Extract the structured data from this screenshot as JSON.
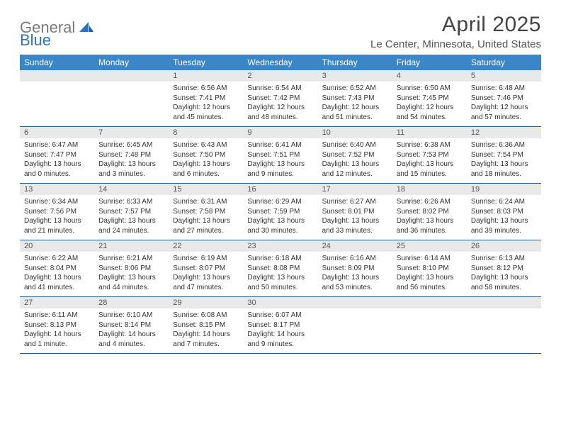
{
  "logo": {
    "text1": "General",
    "text2": "Blue"
  },
  "title": "April 2025",
  "location": "Le Center, Minnesota, United States",
  "colors": {
    "header_bg": "#3b86c7",
    "header_fg": "#ffffff",
    "daynum_bg": "#e9e9e9",
    "rule": "#2b5f8a",
    "logo_gray": "#7a7a7a",
    "logo_blue": "#2b74b8"
  },
  "typography": {
    "title_fontsize": 30,
    "location_fontsize": 15,
    "weekday_fontsize": 12,
    "daynum_fontsize": 11,
    "detail_fontsize": 10
  },
  "weekdays": [
    "Sunday",
    "Monday",
    "Tuesday",
    "Wednesday",
    "Thursday",
    "Friday",
    "Saturday"
  ],
  "weeks": [
    [
      null,
      null,
      {
        "n": "1",
        "sunrise": "6:56 AM",
        "sunset": "7:41 PM",
        "daylight": "12 hours and 45 minutes."
      },
      {
        "n": "2",
        "sunrise": "6:54 AM",
        "sunset": "7:42 PM",
        "daylight": "12 hours and 48 minutes."
      },
      {
        "n": "3",
        "sunrise": "6:52 AM",
        "sunset": "7:43 PM",
        "daylight": "12 hours and 51 minutes."
      },
      {
        "n": "4",
        "sunrise": "6:50 AM",
        "sunset": "7:45 PM",
        "daylight": "12 hours and 54 minutes."
      },
      {
        "n": "5",
        "sunrise": "6:48 AM",
        "sunset": "7:46 PM",
        "daylight": "12 hours and 57 minutes."
      }
    ],
    [
      {
        "n": "6",
        "sunrise": "6:47 AM",
        "sunset": "7:47 PM",
        "daylight": "13 hours and 0 minutes."
      },
      {
        "n": "7",
        "sunrise": "6:45 AM",
        "sunset": "7:48 PM",
        "daylight": "13 hours and 3 minutes."
      },
      {
        "n": "8",
        "sunrise": "6:43 AM",
        "sunset": "7:50 PM",
        "daylight": "13 hours and 6 minutes."
      },
      {
        "n": "9",
        "sunrise": "6:41 AM",
        "sunset": "7:51 PM",
        "daylight": "13 hours and 9 minutes."
      },
      {
        "n": "10",
        "sunrise": "6:40 AM",
        "sunset": "7:52 PM",
        "daylight": "13 hours and 12 minutes."
      },
      {
        "n": "11",
        "sunrise": "6:38 AM",
        "sunset": "7:53 PM",
        "daylight": "13 hours and 15 minutes."
      },
      {
        "n": "12",
        "sunrise": "6:36 AM",
        "sunset": "7:54 PM",
        "daylight": "13 hours and 18 minutes."
      }
    ],
    [
      {
        "n": "13",
        "sunrise": "6:34 AM",
        "sunset": "7:56 PM",
        "daylight": "13 hours and 21 minutes."
      },
      {
        "n": "14",
        "sunrise": "6:33 AM",
        "sunset": "7:57 PM",
        "daylight": "13 hours and 24 minutes."
      },
      {
        "n": "15",
        "sunrise": "6:31 AM",
        "sunset": "7:58 PM",
        "daylight": "13 hours and 27 minutes."
      },
      {
        "n": "16",
        "sunrise": "6:29 AM",
        "sunset": "7:59 PM",
        "daylight": "13 hours and 30 minutes."
      },
      {
        "n": "17",
        "sunrise": "6:27 AM",
        "sunset": "8:01 PM",
        "daylight": "13 hours and 33 minutes."
      },
      {
        "n": "18",
        "sunrise": "6:26 AM",
        "sunset": "8:02 PM",
        "daylight": "13 hours and 36 minutes."
      },
      {
        "n": "19",
        "sunrise": "6:24 AM",
        "sunset": "8:03 PM",
        "daylight": "13 hours and 39 minutes."
      }
    ],
    [
      {
        "n": "20",
        "sunrise": "6:22 AM",
        "sunset": "8:04 PM",
        "daylight": "13 hours and 41 minutes."
      },
      {
        "n": "21",
        "sunrise": "6:21 AM",
        "sunset": "8:06 PM",
        "daylight": "13 hours and 44 minutes."
      },
      {
        "n": "22",
        "sunrise": "6:19 AM",
        "sunset": "8:07 PM",
        "daylight": "13 hours and 47 minutes."
      },
      {
        "n": "23",
        "sunrise": "6:18 AM",
        "sunset": "8:08 PM",
        "daylight": "13 hours and 50 minutes."
      },
      {
        "n": "24",
        "sunrise": "6:16 AM",
        "sunset": "8:09 PM",
        "daylight": "13 hours and 53 minutes."
      },
      {
        "n": "25",
        "sunrise": "6:14 AM",
        "sunset": "8:10 PM",
        "daylight": "13 hours and 56 minutes."
      },
      {
        "n": "26",
        "sunrise": "6:13 AM",
        "sunset": "8:12 PM",
        "daylight": "13 hours and 58 minutes."
      }
    ],
    [
      {
        "n": "27",
        "sunrise": "6:11 AM",
        "sunset": "8:13 PM",
        "daylight": "14 hours and 1 minute."
      },
      {
        "n": "28",
        "sunrise": "6:10 AM",
        "sunset": "8:14 PM",
        "daylight": "14 hours and 4 minutes."
      },
      {
        "n": "29",
        "sunrise": "6:08 AM",
        "sunset": "8:15 PM",
        "daylight": "14 hours and 7 minutes."
      },
      {
        "n": "30",
        "sunrise": "6:07 AM",
        "sunset": "8:17 PM",
        "daylight": "14 hours and 9 minutes."
      },
      null,
      null,
      null
    ]
  ],
  "labels": {
    "sunrise": "Sunrise:",
    "sunset": "Sunset:",
    "daylight": "Daylight:"
  }
}
